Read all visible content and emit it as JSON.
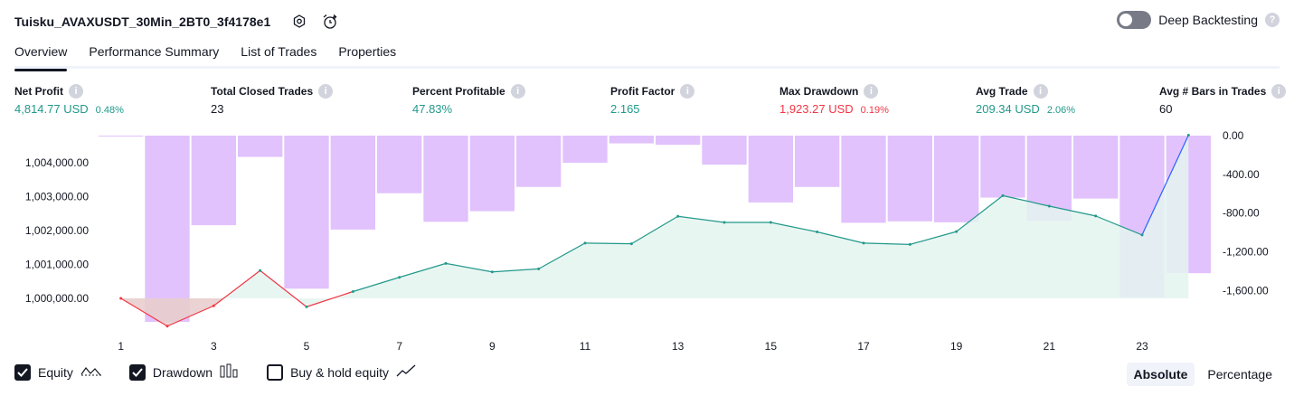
{
  "header": {
    "title": "Tuisku_AVAXUSDT_30Min_2BT0_3f4178e1",
    "settings_icon": "settings-icon",
    "alert_icon": "add-alert-icon",
    "deep_backtesting_label": "Deep Backtesting",
    "deep_backtesting_enabled": false,
    "help_glyph": "?"
  },
  "tabs": [
    {
      "label": "Overview",
      "active": true
    },
    {
      "label": "Performance Summary",
      "active": false
    },
    {
      "label": "List of Trades",
      "active": false
    },
    {
      "label": "Properties",
      "active": false
    }
  ],
  "stats": {
    "net_profit": {
      "label": "Net Profit",
      "value": "4,814.77 USD",
      "pct": "0.48%"
    },
    "total_closed_trades": {
      "label": "Total Closed Trades",
      "value": "23"
    },
    "percent_profitable": {
      "label": "Percent Profitable",
      "value": "47.83%"
    },
    "profit_factor": {
      "label": "Profit Factor",
      "value": "2.165"
    },
    "max_drawdown": {
      "label": "Max Drawdown",
      "value": "1,923.27 USD",
      "pct": "0.19%"
    },
    "avg_trade": {
      "label": "Avg Trade",
      "value": "209.34 USD",
      "pct": "2.06%"
    },
    "avg_bars": {
      "label": "Avg # Bars in Trades",
      "value": "60"
    }
  },
  "info_icon": "i",
  "colors": {
    "green": "#22998a",
    "red": "#f23645",
    "drawdown_bar": "#e1c2fc",
    "equity_fill": "#e4f5f0",
    "buy_hold_line": "#2962ff"
  },
  "chart_data": {
    "type": "area",
    "x": [
      1,
      2,
      3,
      4,
      5,
      6,
      7,
      8,
      9,
      10,
      11,
      12,
      13,
      14,
      15,
      16,
      17,
      18,
      19,
      20,
      21,
      22,
      23,
      24
    ],
    "x_tick_labels": [
      "1",
      "3",
      "5",
      "7",
      "9",
      "11",
      "13",
      "15",
      "17",
      "19",
      "21",
      "23"
    ],
    "left_axis": {
      "ticks": [
        "1,000,000.00",
        "1,001,000.00",
        "1,002,000.00",
        "1,003,000.00",
        "1,004,000.00"
      ],
      "range": [
        999200,
        1004800
      ]
    },
    "right_axis": {
      "ticks": [
        "0.00",
        "-400.00",
        "-800.00",
        "-1,200.00",
        "-1,600.00"
      ],
      "range": [
        -1960,
        0
      ]
    },
    "series": [
      {
        "name": "Equity",
        "axis": "left",
        "values": [
          1000000,
          999180,
          999780,
          1000820,
          999750,
          1000200,
          1000620,
          1001030,
          1000780,
          1000870,
          1001630,
          1001610,
          1002420,
          1002240,
          1002240,
          1001960,
          1001630,
          1001590,
          1001970,
          1003030,
          1002720,
          1002430,
          1001870,
          1004814.77
        ]
      },
      {
        "name": "Drawdown",
        "axis": "right",
        "values": [
          0,
          -1923.27,
          -925,
          -220,
          -1580,
          -970,
          -595,
          -890,
          -780,
          -530,
          -280,
          -80,
          -95,
          -300,
          -690,
          -530,
          -900,
          -885,
          -895,
          -640,
          -880,
          -650,
          -1670,
          -1420
        ]
      }
    ],
    "legend": [
      {
        "label": "Equity",
        "checked": true,
        "icon": "equity-line-icon"
      },
      {
        "label": "Drawdown",
        "checked": true,
        "icon": "drawdown-bars-icon"
      },
      {
        "label": "Buy & hold equity",
        "checked": false,
        "icon": "buy-hold-line-icon"
      }
    ]
  },
  "modes": [
    {
      "label": "Absolute",
      "active": true
    },
    {
      "label": "Percentage",
      "active": false
    }
  ]
}
